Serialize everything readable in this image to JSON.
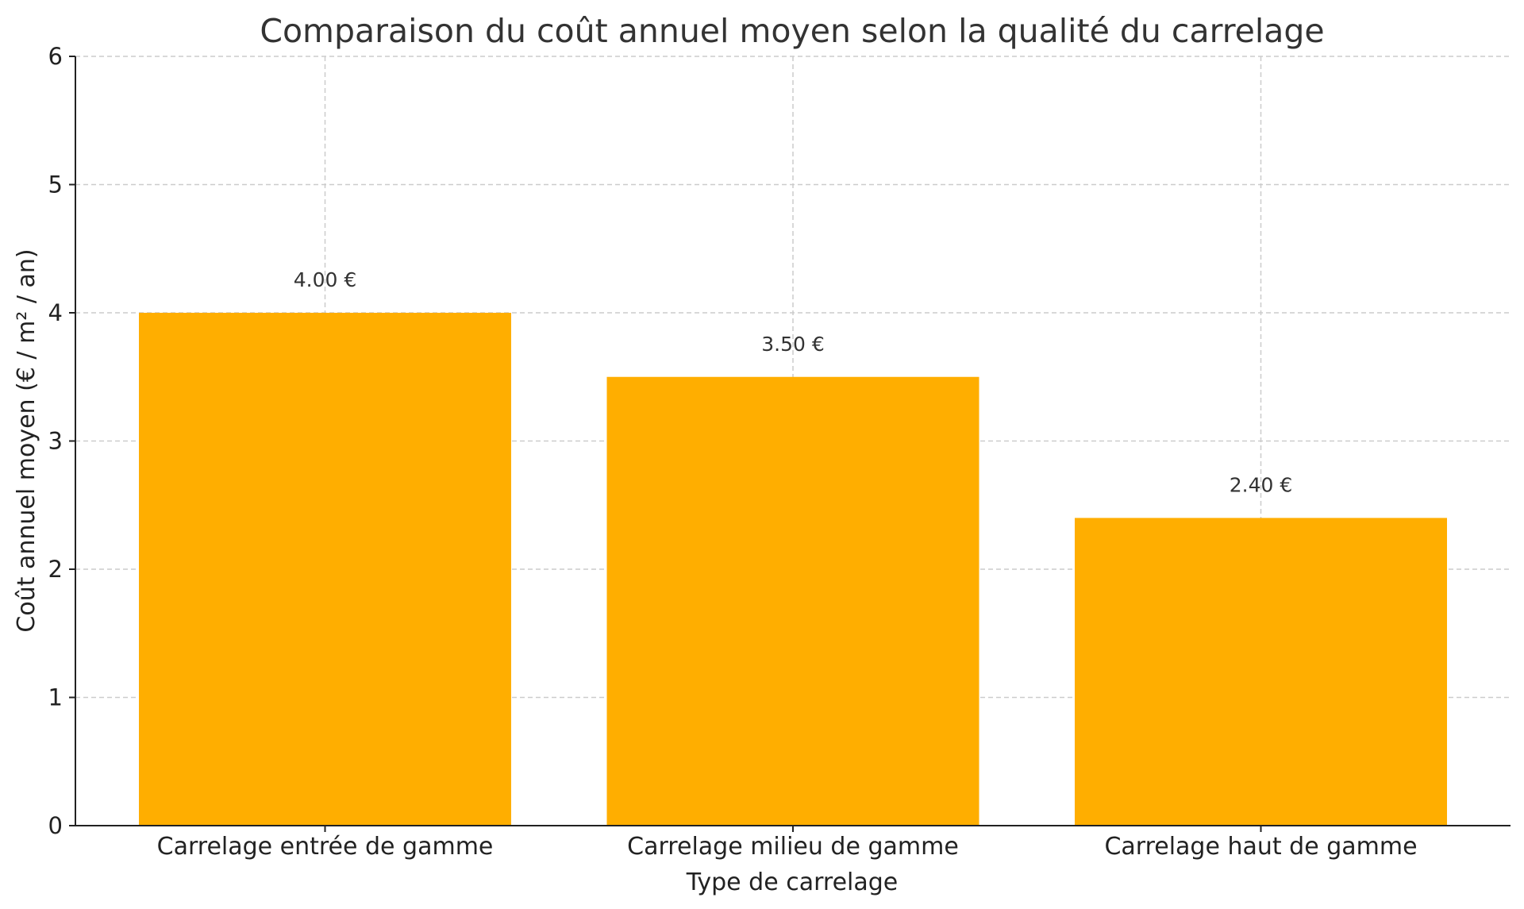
{
  "chart_data": {
    "type": "bar",
    "title": "Comparaison du coût annuel moyen selon la qualité du carrelage",
    "xlabel": "Type de carrelage",
    "ylabel": "Coût annuel moyen (€ / m² / an)",
    "categories": [
      "Carrelage entrée de gamme",
      "Carrelage milieu de gamme",
      "Carrelage haut de gamme"
    ],
    "values": [
      4.0,
      3.5,
      2.4
    ],
    "data_labels": [
      "4.00 €",
      "3.50 €",
      "2.40 €"
    ],
    "ylim": [
      0,
      6
    ],
    "yticks": [
      0,
      1,
      2,
      3,
      4,
      5,
      6
    ],
    "ytick_labels": [
      "0",
      "1",
      "2",
      "3",
      "4",
      "5",
      "6"
    ],
    "grid": true,
    "bar_color": "#FFAE00",
    "grid_color": "#CCCCCC",
    "axis_color": "#222222"
  }
}
